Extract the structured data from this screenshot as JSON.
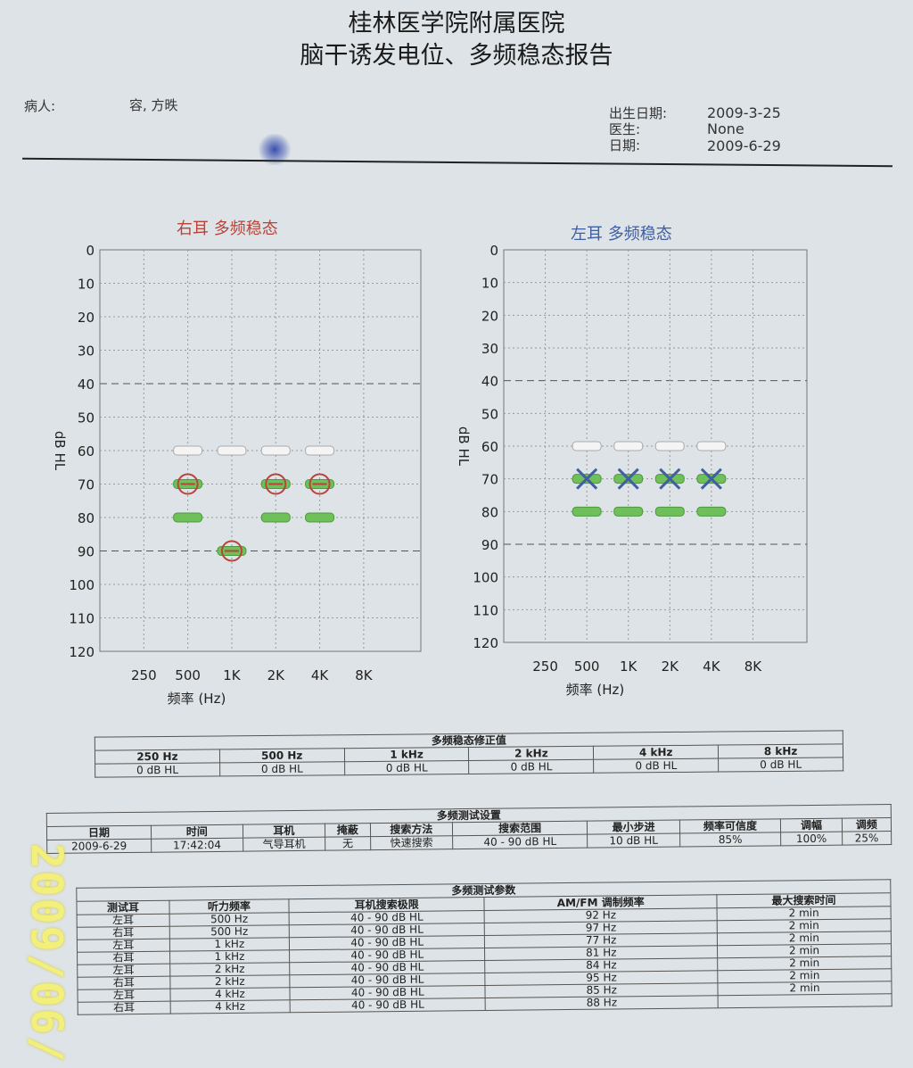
{
  "header": {
    "hospital": "桂林医学院附属医院",
    "report_title": "脑干诱发电位、多频稳态报告",
    "patient_label": "病人:",
    "patient_name": "容, 方昳",
    "dob_label": "出生日期:",
    "dob": "2009-3-25",
    "doctor_label": "医生:",
    "doctor": "None",
    "date_label": "日期:",
    "date": "2009-6-29"
  },
  "charts": {
    "right_title": "右耳 多频稳态",
    "left_title": "左耳 多频稳态",
    "ylabel": "dB HL",
    "xlabel": "频率 (Hz)",
    "yticks": [
      "0",
      "10",
      "20",
      "30",
      "40",
      "50",
      "60",
      "70",
      "80",
      "90",
      "100",
      "110",
      "120"
    ],
    "xticks": [
      "250",
      "500",
      "1K",
      "2K",
      "4K",
      "8K"
    ],
    "colors": {
      "right": "#b8433a",
      "left": "#3f5fa0",
      "green": "#6fbf5a",
      "white": "#f4f4f4"
    }
  },
  "chart_data": [
    {
      "type": "scatter",
      "title": "右耳 多频稳态",
      "xlabel": "频率 (Hz)",
      "ylabel": "dB HL",
      "categories": [
        "250",
        "500",
        "1K",
        "2K",
        "4K",
        "8K"
      ],
      "ylim": [
        0,
        120
      ],
      "reference_lines": [
        40,
        90
      ],
      "series": [
        {
          "marker": "white-bar",
          "x": [
            "500",
            "1K",
            "2K",
            "4K"
          ],
          "values": [
            60,
            60,
            60,
            60
          ]
        },
        {
          "marker": "green-bar",
          "x": [
            "500",
            "1K",
            "2K",
            "4K"
          ],
          "values": [
            80,
            90,
            80,
            80
          ]
        },
        {
          "marker": "green-bar",
          "x": [
            "500",
            "2K",
            "4K"
          ],
          "values": [
            70,
            70,
            70
          ]
        },
        {
          "marker": "circle",
          "x": [
            "500",
            "1K",
            "2K",
            "4K"
          ],
          "values": [
            70,
            90,
            70,
            70
          ]
        }
      ]
    },
    {
      "type": "scatter",
      "title": "左耳 多频稳态",
      "xlabel": "频率 (Hz)",
      "ylabel": "dB HL",
      "categories": [
        "250",
        "500",
        "1K",
        "2K",
        "4K",
        "8K"
      ],
      "ylim": [
        0,
        120
      ],
      "reference_lines": [
        40,
        90
      ],
      "series": [
        {
          "marker": "white-bar",
          "x": [
            "500",
            "1K",
            "2K",
            "4K"
          ],
          "values": [
            60,
            60,
            60,
            60
          ]
        },
        {
          "marker": "green-bar",
          "x": [
            "500",
            "1K",
            "2K",
            "4K"
          ],
          "values": [
            80,
            80,
            80,
            80
          ]
        },
        {
          "marker": "green-bar",
          "x": [
            "500",
            "1K",
            "2K",
            "4K"
          ],
          "values": [
            70,
            70,
            70,
            70
          ]
        },
        {
          "marker": "cross",
          "x": [
            "500",
            "1K",
            "2K",
            "4K"
          ],
          "values": [
            70,
            70,
            70,
            70
          ]
        }
      ]
    }
  ],
  "correction": {
    "caption": "多频稳态修正值",
    "headers": [
      "250 Hz",
      "500 Hz",
      "1 kHz",
      "2 kHz",
      "4 kHz",
      "8 kHz"
    ],
    "values": [
      "0 dB HL",
      "0 dB HL",
      "0 dB HL",
      "0 dB HL",
      "0 dB HL",
      "0 dB HL"
    ]
  },
  "settings": {
    "caption": "多频测试设置",
    "headers": [
      "日期",
      "时间",
      "耳机",
      "掩蔽",
      "搜索方法",
      "搜索范围",
      "最小步进",
      "频率可信度",
      "调幅",
      "调频"
    ],
    "values": [
      "2009-6-29",
      "17:42:04",
      "气导耳机",
      "无",
      "快速搜索",
      "40 - 90 dB HL",
      "10 dB HL",
      "85%",
      "100%",
      "25%"
    ]
  },
  "params": {
    "caption": "多频测试参数",
    "headers": [
      "测试耳",
      "听力频率",
      "耳机搜索极限",
      "AM/FM 调制频率",
      "最大搜索时间"
    ],
    "rows": [
      [
        "左耳",
        "500 Hz",
        "40 - 90 dB HL",
        "92 Hz",
        "2 min"
      ],
      [
        "右耳",
        "500 Hz",
        "40 - 90 dB HL",
        "97 Hz",
        "2 min"
      ],
      [
        "左耳",
        "1 kHz",
        "40 - 90 dB HL",
        "77 Hz",
        "2 min"
      ],
      [
        "右耳",
        "1 kHz",
        "40 - 90 dB HL",
        "81 Hz",
        "2 min"
      ],
      [
        "左耳",
        "2 kHz",
        "40 - 90 dB HL",
        "84 Hz",
        "2 min"
      ],
      [
        "右耳",
        "2 kHz",
        "40 - 90 dB HL",
        "95 Hz",
        "2 min"
      ],
      [
        "左耳",
        "4 kHz",
        "40 - 90 dB HL",
        "85 Hz",
        "2 min"
      ],
      [
        "右耳",
        "4 kHz",
        "40 - 90 dB HL",
        "88 Hz",
        ""
      ]
    ]
  },
  "photo_stamp": "2009/06/"
}
